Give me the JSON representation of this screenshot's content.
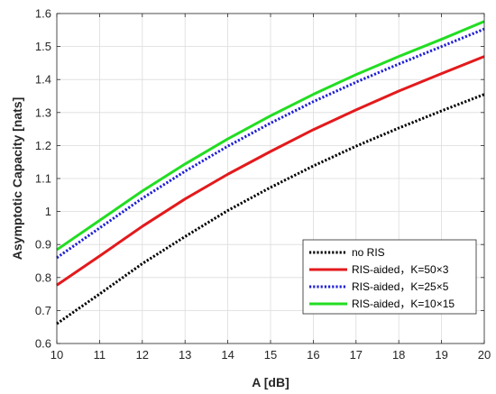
{
  "chart_data": {
    "type": "line",
    "title": "",
    "xlabel": "A [dB]",
    "ylabel": "Asymptotic Capacity [nats]",
    "xlim": [
      10,
      20
    ],
    "ylim": [
      0.6,
      1.6
    ],
    "xticks": [
      10,
      11,
      12,
      13,
      14,
      15,
      16,
      17,
      18,
      19,
      20
    ],
    "yticks": [
      0.6,
      0.7,
      0.8,
      0.9,
      1,
      1.1,
      1.2,
      1.3,
      1.4,
      1.5,
      1.6
    ],
    "xtick_labels": [
      "10",
      "11",
      "12",
      "13",
      "14",
      "15",
      "16",
      "17",
      "18",
      "19",
      "20"
    ],
    "ytick_labels": [
      "0.6",
      "0.7",
      "0.8",
      "0.9",
      "1",
      "1.1",
      "1.2",
      "1.3",
      "1.4",
      "1.5",
      "1.6"
    ],
    "grid": true,
    "legend_position": "bottom-right",
    "x": [
      10,
      11,
      12,
      13,
      14,
      15,
      16,
      17,
      18,
      19,
      20
    ],
    "series": [
      {
        "name": "no RIS",
        "color": "#000000",
        "style": "dotted",
        "values": [
          0.66,
          0.75,
          0.842,
          0.924,
          1.003,
          1.073,
          1.138,
          1.198,
          1.253,
          1.305,
          1.355
        ]
      },
      {
        "name": "RIS-aided，K=50×3",
        "color": "#e31a1c",
        "style": "solid",
        "values": [
          0.777,
          0.865,
          0.955,
          1.038,
          1.113,
          1.182,
          1.248,
          1.308,
          1.365,
          1.418,
          1.47
        ]
      },
      {
        "name": "RIS-aided，K=25×5",
        "color": "#1f1fd6",
        "style": "dotted",
        "values": [
          0.86,
          0.95,
          1.04,
          1.122,
          1.198,
          1.268,
          1.333,
          1.392,
          1.447,
          1.5,
          1.553
        ]
      },
      {
        "name": "RIS-aided，K=10×15",
        "color": "#22dd22",
        "style": "solid",
        "values": [
          0.884,
          0.973,
          1.062,
          1.144,
          1.22,
          1.29,
          1.355,
          1.415,
          1.47,
          1.522,
          1.576
        ]
      }
    ]
  }
}
